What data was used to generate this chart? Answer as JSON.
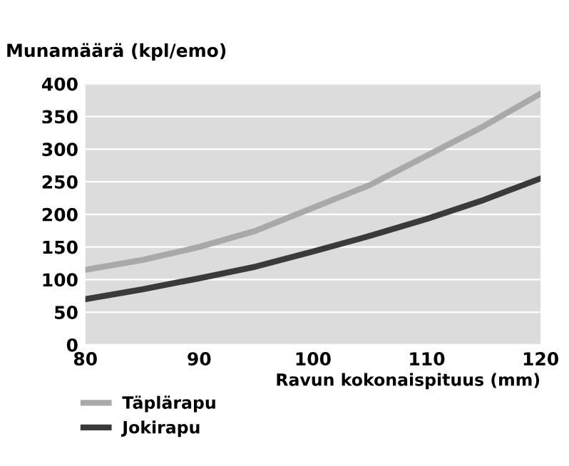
{
  "chart_data": {
    "type": "line",
    "ylabel": "Munamäärä (kpl/emo)",
    "xlabel": "Ravun kokonaispituus (mm)",
    "x": [
      80,
      85,
      90,
      95,
      100,
      105,
      110,
      115,
      120
    ],
    "series": [
      {
        "name": "Täplärapu",
        "color": "#a9a9a9",
        "values": [
          115,
          130,
          150,
          175,
          210,
          245,
          290,
          335,
          385
        ]
      },
      {
        "name": "Jokirapu",
        "color": "#3a3a3a",
        "values": [
          70,
          85,
          102,
          120,
          143,
          167,
          193,
          222,
          255
        ]
      }
    ],
    "xlim": [
      80,
      120
    ],
    "xticks": [
      80,
      90,
      100,
      110,
      120
    ],
    "ylim": [
      0,
      400
    ],
    "yticks": [
      0,
      50,
      100,
      150,
      200,
      250,
      300,
      350,
      400
    ],
    "grid": "y",
    "legend": "bottom left",
    "marker": "none",
    "line_style": "solid"
  }
}
